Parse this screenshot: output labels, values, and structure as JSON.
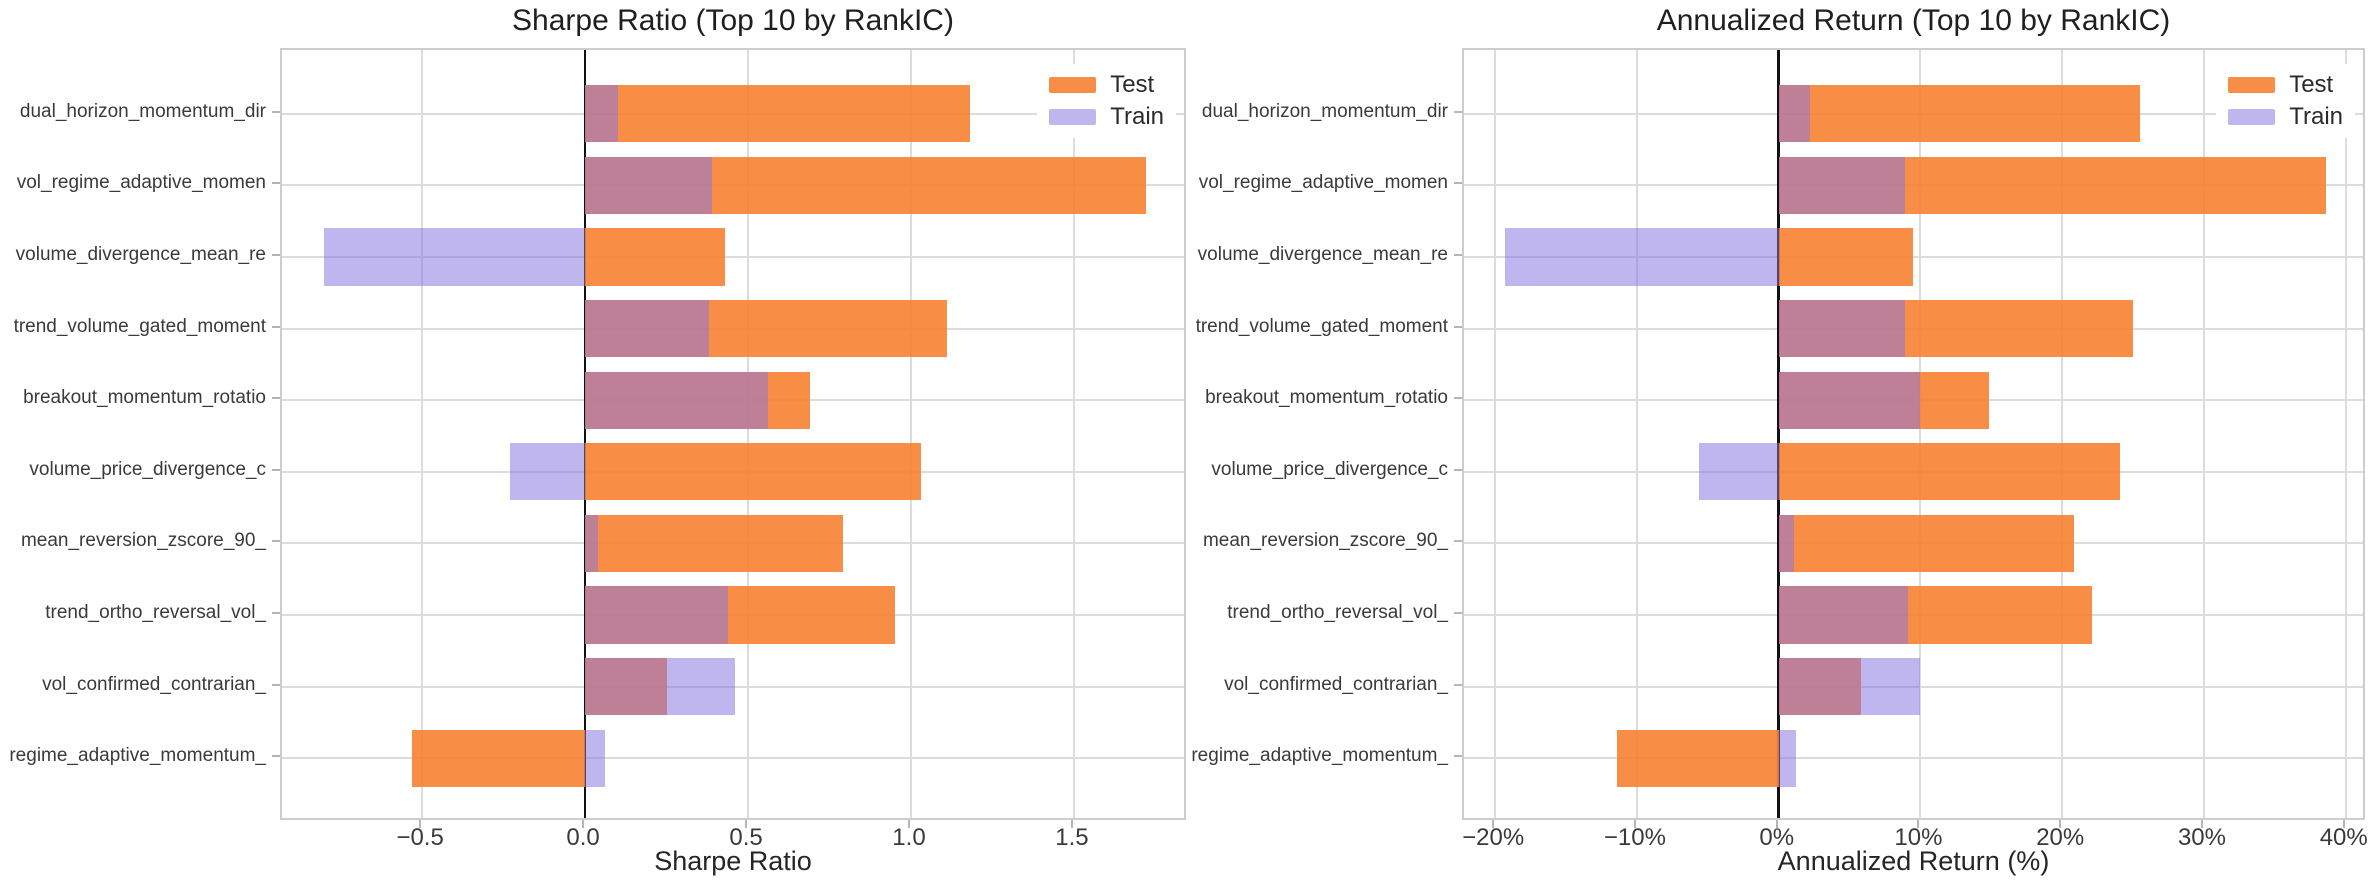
{
  "figure": {
    "background": "#ffffff",
    "legend": {
      "items": [
        {
          "label": "Test"
        },
        {
          "label": "Train"
        }
      ]
    },
    "colors": {
      "test": "rgba(247,130,50,0.9)",
      "train": "rgba(135,115,225,0.52)",
      "test_on_white_reference": "#f8914b",
      "train_on_white_reference": "#c1bef2",
      "overlap_reference": "#bf7d8a",
      "grid": "#dcdcdc",
      "spine": "#cdcdcd",
      "tick_mark": "#b5b5b5",
      "zero_line": "#111111",
      "title_text": "#1f1f1f",
      "label_text": "#3a3a3a"
    }
  },
  "chart_data": [
    {
      "type": "bar",
      "orientation": "horizontal",
      "title": "Sharpe Ratio (Top 10 by RankIC)",
      "xlabel": "Sharpe Ratio",
      "categories": [
        "dual_horizon_momentum_dir",
        "vol_regime_adaptive_momen",
        "volume_divergence_mean_re",
        "trend_volume_gated_moment",
        "breakout_momentum_rotatio",
        "volume_price_divergence_c",
        "mean_reversion_zscore_90_",
        "trend_ortho_reversal_vol_",
        "vol_confirmed_contrarian_",
        "regime_adaptive_momentum_"
      ],
      "series": [
        {
          "name": "Test",
          "values": [
            1.18,
            1.72,
            0.43,
            1.11,
            0.69,
            1.03,
            0.79,
            0.95,
            0.25,
            -0.53
          ]
        },
        {
          "name": "Train",
          "values": [
            0.1,
            0.39,
            -0.8,
            0.38,
            0.56,
            -0.23,
            0.04,
            0.44,
            0.46,
            0.06
          ]
        }
      ],
      "xlim": [
        -0.93,
        1.85
      ],
      "xticks": [
        -0.5,
        0.0,
        0.5,
        1.0,
        1.5
      ],
      "xtick_labels": [
        "−0.5",
        "0.0",
        "0.5",
        "1.0",
        "1.5"
      ],
      "grid": true,
      "legend_position": "upper right"
    },
    {
      "type": "bar",
      "orientation": "horizontal",
      "title": "Annualized Return (Top 10 by RankIC)",
      "xlabel": "Annualized Return (%)",
      "categories": [
        "dual_horizon_momentum_dir",
        "vol_regime_adaptive_momen",
        "volume_divergence_mean_re",
        "trend_volume_gated_moment",
        "breakout_momentum_rotatio",
        "volume_price_divergence_c",
        "mean_reversion_zscore_90_",
        "trend_ortho_reversal_vol_",
        "vol_confirmed_contrarian_",
        "regime_adaptive_momentum_"
      ],
      "series": [
        {
          "name": "Test",
          "values": [
            25.5,
            38.6,
            9.5,
            25.0,
            14.8,
            24.1,
            20.8,
            22.1,
            5.8,
            -11.4
          ]
        },
        {
          "name": "Train",
          "values": [
            2.2,
            8.9,
            -19.3,
            8.9,
            10.0,
            -5.6,
            1.1,
            9.1,
            10.0,
            1.2
          ]
        }
      ],
      "xlim": [
        -22.2,
        41.5
      ],
      "xticks": [
        -20,
        -10,
        0,
        10,
        20,
        30,
        40
      ],
      "xtick_labels": [
        "−20%",
        "−10%",
        "0%",
        "10%",
        "20%",
        "30%",
        "40%"
      ],
      "grid": true,
      "legend_position": "upper right"
    }
  ]
}
